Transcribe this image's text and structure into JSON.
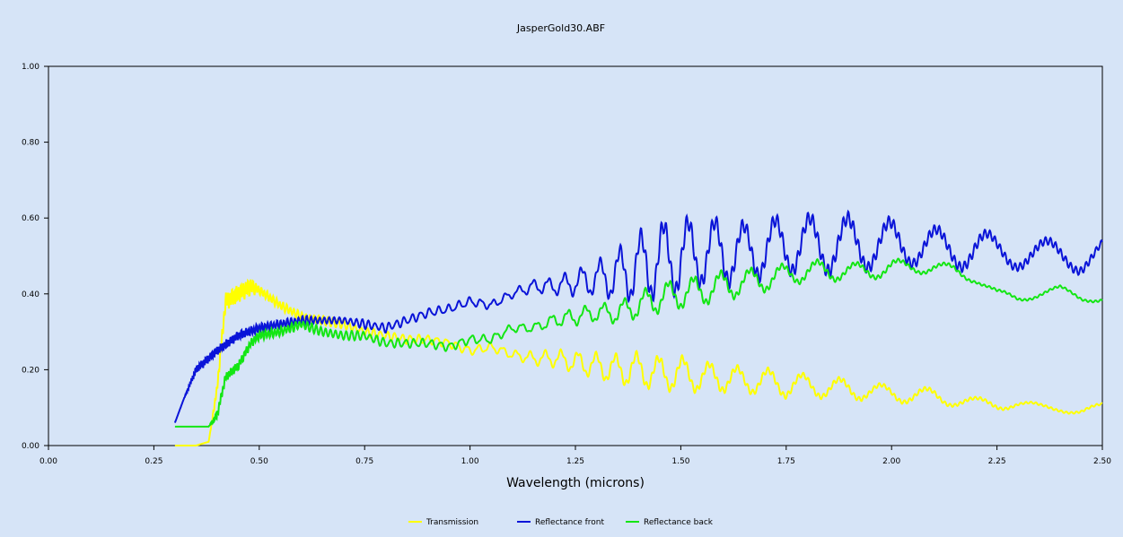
{
  "chart_data": {
    "type": "line",
    "title": "JasperGold30.ABF",
    "xlabel": "Wavelength (microns)",
    "ylabel": "",
    "xlim": [
      0.0,
      2.5
    ],
    "ylim": [
      0.0,
      1.0
    ],
    "x_ticks": [
      "0.00",
      "0.25",
      "0.50",
      "0.75",
      "1.00",
      "1.25",
      "1.50",
      "1.75",
      "2.00",
      "2.25",
      "2.50"
    ],
    "y_ticks": [
      "0.00",
      "0.20",
      "0.40",
      "0.60",
      "0.80",
      "1.00"
    ],
    "grid": false,
    "legend_position": "bottom",
    "series": [
      {
        "name": "Transmission",
        "color": "#ffff00",
        "x": [
          0.3,
          0.35,
          0.38,
          0.4,
          0.42,
          0.45,
          0.48,
          0.5,
          0.55,
          0.6,
          0.65,
          0.7,
          0.75,
          0.8,
          0.85,
          0.9,
          0.95,
          1.0,
          1.05,
          1.1,
          1.15,
          1.2,
          1.25,
          1.3,
          1.35,
          1.4,
          1.45,
          1.5,
          1.55,
          1.6,
          1.65,
          1.7,
          1.75,
          1.8,
          1.85,
          1.9,
          1.95,
          2.0,
          2.05,
          2.1,
          2.15,
          2.2,
          2.25,
          2.3,
          2.35,
          2.4,
          2.45,
          2.5
        ],
        "y": [
          0.0,
          0.0,
          0.01,
          0.15,
          0.38,
          0.4,
          0.42,
          0.41,
          0.37,
          0.34,
          0.33,
          0.32,
          0.3,
          0.29,
          0.28,
          0.28,
          0.27,
          0.25,
          0.26,
          0.24,
          0.23,
          0.23,
          0.22,
          0.21,
          0.2,
          0.2,
          0.19,
          0.19,
          0.18,
          0.18,
          0.17,
          0.17,
          0.16,
          0.16,
          0.15,
          0.15,
          0.14,
          0.14,
          0.13,
          0.13,
          0.12,
          0.11,
          0.11,
          0.11,
          0.1,
          0.1,
          0.09,
          0.1
        ],
        "osc_amp": [
          0,
          0,
          0,
          0.01,
          0.02,
          0.02,
          0.02,
          0.01,
          0.01,
          0.01,
          0.01,
          0.01,
          0.01,
          0.01,
          0.01,
          0.01,
          0.01,
          0.01,
          0.01,
          0.01,
          0.015,
          0.02,
          0.025,
          0.03,
          0.035,
          0.04,
          0.04,
          0.04,
          0.035,
          0.035,
          0.03,
          0.03,
          0.03,
          0.025,
          0.025,
          0.025,
          0.02,
          0.02,
          0.02,
          0.02,
          0.015,
          0.015,
          0.015,
          0.01,
          0.01,
          0.01,
          0.01,
          0.01
        ]
      },
      {
        "name": "Reflectance front",
        "color": "#0a14d8",
        "x": [
          0.3,
          0.32,
          0.35,
          0.4,
          0.45,
          0.5,
          0.55,
          0.6,
          0.65,
          0.7,
          0.75,
          0.8,
          0.85,
          0.9,
          0.95,
          1.0,
          1.05,
          1.1,
          1.15,
          1.2,
          1.25,
          1.3,
          1.35,
          1.4,
          1.45,
          1.5,
          1.55,
          1.6,
          1.65,
          1.7,
          1.75,
          1.8,
          1.85,
          1.9,
          1.95,
          2.0,
          2.05,
          2.1,
          2.15,
          2.2,
          2.25,
          2.3,
          2.35,
          2.4,
          2.45,
          2.5
        ],
        "y": [
          0.06,
          0.12,
          0.2,
          0.25,
          0.29,
          0.31,
          0.32,
          0.33,
          0.33,
          0.33,
          0.32,
          0.31,
          0.33,
          0.35,
          0.36,
          0.38,
          0.37,
          0.4,
          0.42,
          0.42,
          0.43,
          0.44,
          0.45,
          0.47,
          0.49,
          0.5,
          0.51,
          0.51,
          0.51,
          0.52,
          0.53,
          0.53,
          0.53,
          0.53,
          0.53,
          0.53,
          0.53,
          0.52,
          0.52,
          0.52,
          0.51,
          0.51,
          0.5,
          0.5,
          0.5,
          0.52
        ],
        "osc_amp": [
          0,
          0,
          0.01,
          0.01,
          0.01,
          0.01,
          0.01,
          0.01,
          0.01,
          0.01,
          0.01,
          0.01,
          0.01,
          0.01,
          0.01,
          0.01,
          0.01,
          0.01,
          0.015,
          0.02,
          0.03,
          0.04,
          0.06,
          0.08,
          0.09,
          0.09,
          0.08,
          0.08,
          0.07,
          0.07,
          0.07,
          0.07,
          0.07,
          0.07,
          0.06,
          0.06,
          0.05,
          0.05,
          0.05,
          0.05,
          0.04,
          0.04,
          0.04,
          0.04,
          0.04,
          0.03
        ]
      },
      {
        "name": "Reflectance back",
        "color": "#14e614",
        "x": [
          0.3,
          0.35,
          0.38,
          0.4,
          0.42,
          0.45,
          0.48,
          0.5,
          0.55,
          0.6,
          0.65,
          0.7,
          0.75,
          0.8,
          0.85,
          0.9,
          0.95,
          1.0,
          1.05,
          1.1,
          1.15,
          1.2,
          1.25,
          1.3,
          1.35,
          1.4,
          1.45,
          1.5,
          1.55,
          1.6,
          1.65,
          1.7,
          1.75,
          1.8,
          1.85,
          1.9,
          1.95,
          2.0,
          2.05,
          2.1,
          2.15,
          2.2,
          2.25,
          2.3,
          2.35,
          2.4,
          2.45,
          2.5
        ],
        "y": [
          0.05,
          0.05,
          0.05,
          0.08,
          0.18,
          0.21,
          0.27,
          0.29,
          0.3,
          0.32,
          0.3,
          0.29,
          0.29,
          0.27,
          0.27,
          0.27,
          0.26,
          0.28,
          0.28,
          0.31,
          0.31,
          0.33,
          0.34,
          0.35,
          0.35,
          0.37,
          0.39,
          0.4,
          0.41,
          0.42,
          0.43,
          0.44,
          0.45,
          0.46,
          0.46,
          0.46,
          0.46,
          0.47,
          0.47,
          0.47,
          0.46,
          0.44,
          0.4,
          0.39,
          0.4,
          0.41,
          0.39,
          0.39
        ],
        "osc_amp": [
          0,
          0,
          0,
          0.01,
          0.01,
          0.01,
          0.01,
          0.01,
          0.01,
          0.01,
          0.01,
          0.01,
          0.01,
          0.01,
          0.01,
          0.01,
          0.01,
          0.01,
          0.01,
          0.01,
          0.01,
          0.015,
          0.02,
          0.02,
          0.025,
          0.03,
          0.035,
          0.035,
          0.035,
          0.035,
          0.03,
          0.03,
          0.025,
          0.025,
          0.025,
          0.02,
          0.02,
          0.02,
          0.015,
          0.015,
          0.015,
          0.01,
          0.01,
          0.01,
          0.01,
          0.01,
          0.01,
          0.01
        ]
      }
    ]
  }
}
